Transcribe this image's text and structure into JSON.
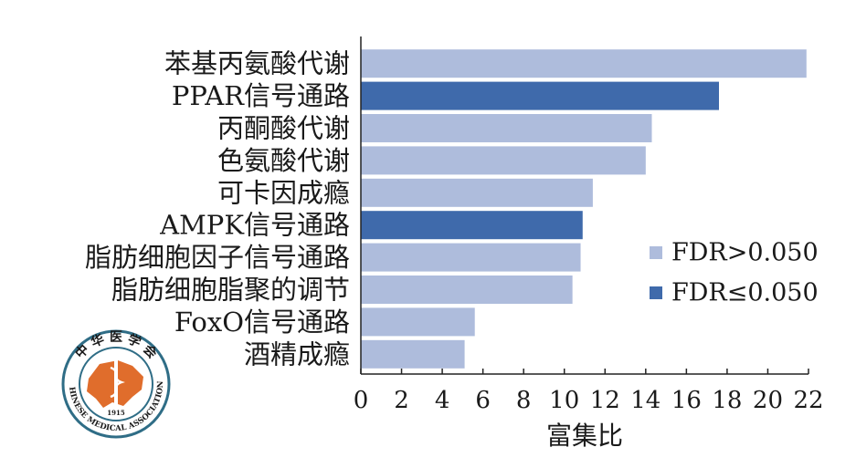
{
  "chart_data": {
    "type": "bar",
    "orientation": "horizontal",
    "categories": [
      "苯基丙氨酸代谢",
      "PPAR信号通路",
      "丙酮酸代谢",
      "色氨酸代谢",
      "可卡因成瘾",
      "AMPK信号通路",
      "脂肪细胞因子信号通路",
      "脂肪细胞脂聚的调节",
      "FoxO信号通路",
      "酒精成瘾"
    ],
    "values": [
      21.9,
      17.6,
      14.3,
      14.0,
      11.4,
      10.9,
      10.8,
      10.4,
      5.6,
      5.1
    ],
    "groups": [
      "FDR>0.050",
      "FDR≤0.050",
      "FDR>0.050",
      "FDR>0.050",
      "FDR>0.050",
      "FDR≤0.050",
      "FDR>0.050",
      "FDR>0.050",
      "FDR>0.050",
      "FDR>0.050"
    ],
    "xlabel": "富集比",
    "xlim": [
      0,
      22
    ],
    "xticks": [
      "0",
      "2",
      "4",
      "6",
      "8",
      "10",
      "12",
      "14",
      "16",
      "18",
      "20",
      "22"
    ],
    "grid": false,
    "legend": {
      "placement": "right",
      "items": [
        {
          "label": "FDR>0.050",
          "color": "#aebcdc"
        },
        {
          "label": "FDR≤0.050",
          "color": "#3f6aab"
        }
      ]
    }
  },
  "logo": {
    "top_text": "中 华 医 学 会",
    "bottom_text": "CHINESE MEDICAL ASSOCIATION",
    "year": "1915",
    "colors": {
      "ring": "#2f6d86",
      "map": "#e06d2c"
    }
  }
}
